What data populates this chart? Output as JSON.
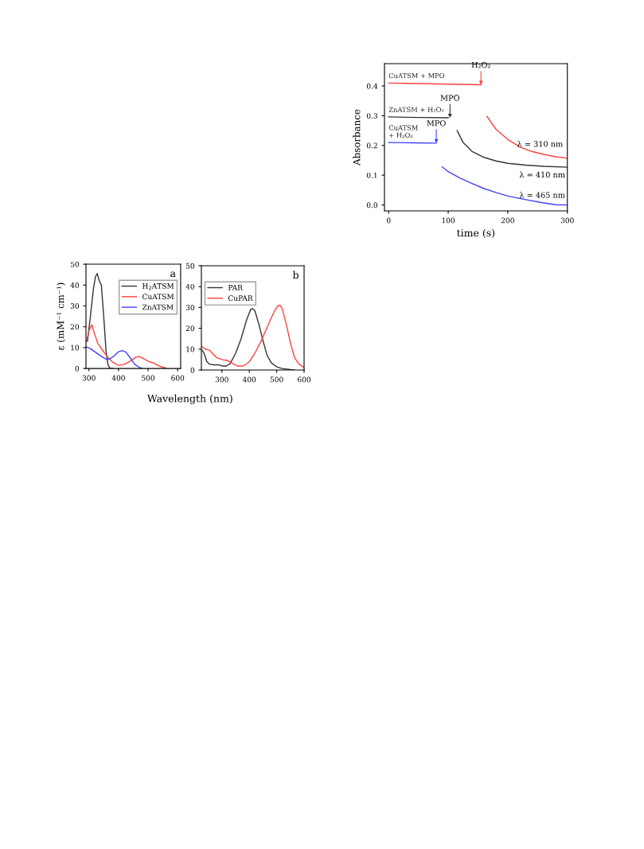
{
  "chart_data": [
    {
      "type": "line",
      "ylabel": "ε (mM⁻¹ cm⁻¹)",
      "xlabel": "Wavelength (nm)",
      "annotations": [
        "a"
      ],
      "xlim": [
        290,
        610
      ],
      "ylim": [
        0,
        50
      ],
      "xticks": [
        300,
        400,
        500,
        600
      ],
      "yticks": [
        0,
        10,
        20,
        30,
        40,
        50
      ],
      "grid": false,
      "legend": "upper right",
      "tick_labels": true,
      "series": [
        {
          "name": "H$_{2}$ATSM",
          "color": "#333333",
          "x": [
            295,
            305,
            315,
            322,
            328,
            335,
            342,
            350,
            358,
            365,
            372,
            380
          ],
          "values": [
            13,
            25,
            38,
            44,
            45.5,
            42,
            40,
            25,
            8,
            1.5,
            0,
            0
          ]
        },
        {
          "name": "CuATSM",
          "color": "#ff4040",
          "x": [
            292,
            300,
            310,
            318,
            330,
            345,
            360,
            380,
            400,
            420,
            440,
            460,
            470,
            480,
            500,
            520,
            540,
            560
          ],
          "values": [
            13,
            18,
            21,
            17,
            12,
            9,
            6,
            3,
            1.5,
            2,
            3.5,
            5.5,
            5.7,
            5,
            3.5,
            2.5,
            1,
            0.2
          ]
        },
        {
          "name": "ZnATSM",
          "color": "#4040ff",
          "x": [
            292,
            305,
            320,
            340,
            360,
            370,
            385,
            400,
            412,
            425,
            440,
            455,
            470,
            480
          ],
          "values": [
            10.3,
            9.5,
            8,
            6,
            4.3,
            4.5,
            6,
            8,
            8.6,
            7.8,
            5,
            2,
            0.5,
            0
          ]
        }
      ]
    },
    {
      "type": "line",
      "annotations": [
        "b"
      ],
      "xlim": [
        225,
        600
      ],
      "ylim": [
        0,
        50
      ],
      "xticks": [
        300,
        400,
        500,
        600
      ],
      "yticks": [
        0,
        10,
        20,
        30,
        40,
        50
      ],
      "grid": false,
      "legend": "upper left",
      "series": [
        {
          "name": "PAR",
          "color": "#333333",
          "x": [
            228,
            235,
            245,
            255,
            270,
            285,
            300,
            315,
            330,
            350,
            370,
            390,
            405,
            412,
            420,
            435,
            450,
            465,
            480,
            500,
            520,
            550,
            565
          ],
          "values": [
            9.5,
            8,
            4,
            2.8,
            2.5,
            2.5,
            2,
            1.8,
            3,
            8,
            15,
            24,
            29,
            29.4,
            28.5,
            22,
            14,
            7,
            3.5,
            1.5,
            0.7,
            0.2,
            0
          ]
        },
        {
          "name": "CuPAR",
          "color": "#ff4040",
          "x": [
            225,
            240,
            255,
            265,
            280,
            300,
            320,
            340,
            360,
            380,
            400,
            420,
            440,
            460,
            480,
            495,
            505,
            512,
            520,
            535,
            550,
            565,
            580,
            600
          ],
          "values": [
            11.3,
            10,
            9.5,
            8,
            6,
            5,
            4.6,
            3,
            1.8,
            2,
            4,
            8,
            13,
            19,
            25,
            29,
            30.8,
            31,
            29.5,
            22,
            13,
            6,
            3,
            1.2
          ]
        }
      ]
    },
    {
      "type": "line",
      "xlabel": "time (s)",
      "ylabel": "Absorbance",
      "xlim": [
        -7,
        300
      ],
      "ylim": [
        -0.02,
        0.475
      ],
      "xticks": [
        0,
        100,
        200,
        300
      ],
      "yticks": [
        {
          "value": 0,
          "label": "0.0"
        },
        0.1,
        0.2,
        0.3,
        0.4
      ],
      "grid": false,
      "annotations": [
        {
          "text": "H₂O₂",
          "x": 155,
          "y": 0.404
        },
        {
          "text": "MPO",
          "x": 103,
          "y": 0.293
        },
        {
          "text": "MPO",
          "x": 80,
          "y": 0.208
        },
        {
          "text": "λ = 310 nm",
          "x": 300,
          "y": 0.157
        },
        {
          "text": "λ = 410 nm",
          "x": 300,
          "y": 0.127
        },
        {
          "text": "λ = 465 nm",
          "x": 300,
          "y": 0
        }
      ],
      "series": [
        {
          "name": "CuATSM + MPO",
          "color": "#ff4040",
          "x": [
            0,
            50,
            100,
            155,
            160,
            165,
            180,
            200,
            220,
            240,
            260,
            280,
            300
          ],
          "values": [
            0.41,
            0.408,
            0.406,
            0.404,
            null,
            0.298,
            0.255,
            0.22,
            0.195,
            0.18,
            0.17,
            0.162,
            0.157
          ]
        },
        {
          "name": "ZnATSM + H₂O₂",
          "color": "#333333",
          "x": [
            0,
            50,
            100,
            108,
            115,
            125,
            140,
            160,
            180,
            200,
            230,
            260,
            300
          ],
          "values": [
            0.296,
            0.294,
            0.293,
            null,
            0.25,
            0.21,
            0.18,
            0.16,
            0.148,
            0.14,
            0.134,
            0.13,
            0.127
          ]
        },
        {
          "name": "CuATSM\n+ H₂O₂",
          "color": "#4040ff",
          "x": [
            0,
            40,
            80,
            85,
            90,
            100,
            120,
            140,
            160,
            180,
            200,
            230,
            260,
            280,
            300
          ],
          "values": [
            0.21,
            0.209,
            0.208,
            null,
            0.128,
            0.112,
            0.09,
            0.072,
            0.055,
            0.042,
            0.03,
            0.018,
            0.007,
            0.001,
            0
          ]
        }
      ]
    }
  ]
}
